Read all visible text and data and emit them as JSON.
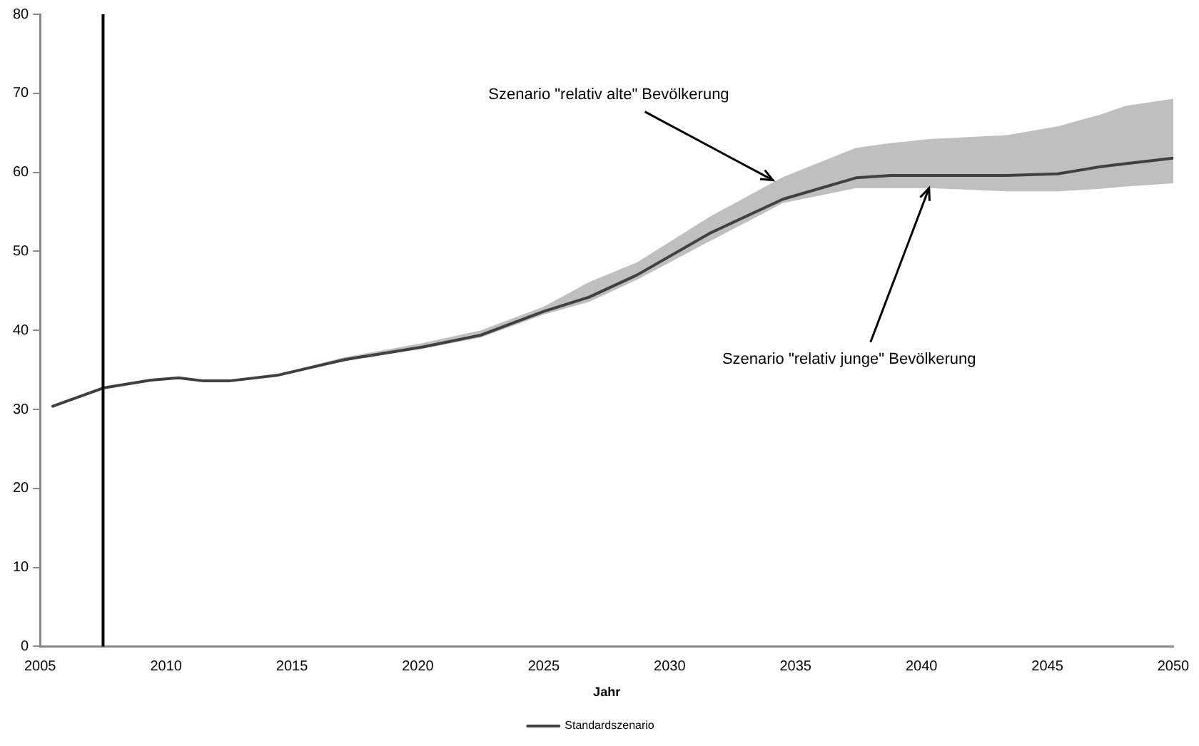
{
  "chart_data": {
    "type": "line",
    "xlabel": "Jahr",
    "x": [
      2005.5,
      2007.5,
      2009.4,
      2010.5,
      2011.5,
      2012.5,
      2014.4,
      2017.1,
      2020.2,
      2022.5,
      2025,
      2026.8,
      2028.7,
      2031.6,
      2034.5,
      2037.4,
      2038.8,
      2040.3,
      2043.4,
      2045.4,
      2047.1,
      2048.1,
      2050
    ],
    "series": [
      {
        "name": "Standardszenario",
        "color": "#404040",
        "values": [
          30.4,
          32.7,
          33.7,
          34.0,
          33.6,
          33.6,
          34.3,
          36.3,
          37.9,
          39.4,
          42.4,
          44.2,
          47.0,
          52.3,
          56.6,
          59.3,
          59.6,
          59.6,
          59.6,
          59.8,
          60.7,
          61.1,
          61.8
        ],
        "lower": [
          null,
          null,
          null,
          null,
          null,
          null,
          34.2,
          36.1,
          37.7,
          39.1,
          42.0,
          43.6,
          46.4,
          51.3,
          56.1,
          58.0,
          58.0,
          58.0,
          57.6,
          57.6,
          57.9,
          58.2,
          58.6
        ],
        "upper": [
          null,
          null,
          null,
          null,
          null,
          null,
          34.4,
          36.6,
          38.4,
          40.0,
          43.0,
          46.1,
          48.6,
          54.4,
          59.4,
          63.1,
          63.7,
          64.2,
          64.7,
          65.8,
          67.3,
          68.4,
          69.3
        ]
      }
    ],
    "xlim": [
      2005,
      2050
    ],
    "xticks": [
      2005,
      2010,
      2015,
      2020,
      2025,
      2030,
      2035,
      2040,
      2045,
      2050
    ],
    "ylim": [
      0,
      80
    ],
    "yticks": [
      0,
      10,
      20,
      30,
      40,
      50,
      60,
      70,
      80
    ],
    "ref_lines": [
      {
        "axis": "x",
        "value": 2007.5,
        "color": "#000000"
      }
    ],
    "annotations": [
      {
        "text": "Szenario \"relativ alte\" Bevölkerung",
        "x": 2034.1,
        "y": 59.0
      },
      {
        "text": "Szenario \"relativ junge\" Bevölkerung",
        "x": 2040.3,
        "y": 58.0
      }
    ],
    "grid": false,
    "legend": "bottom",
    "marker": "none",
    "line_style": "solid"
  }
}
